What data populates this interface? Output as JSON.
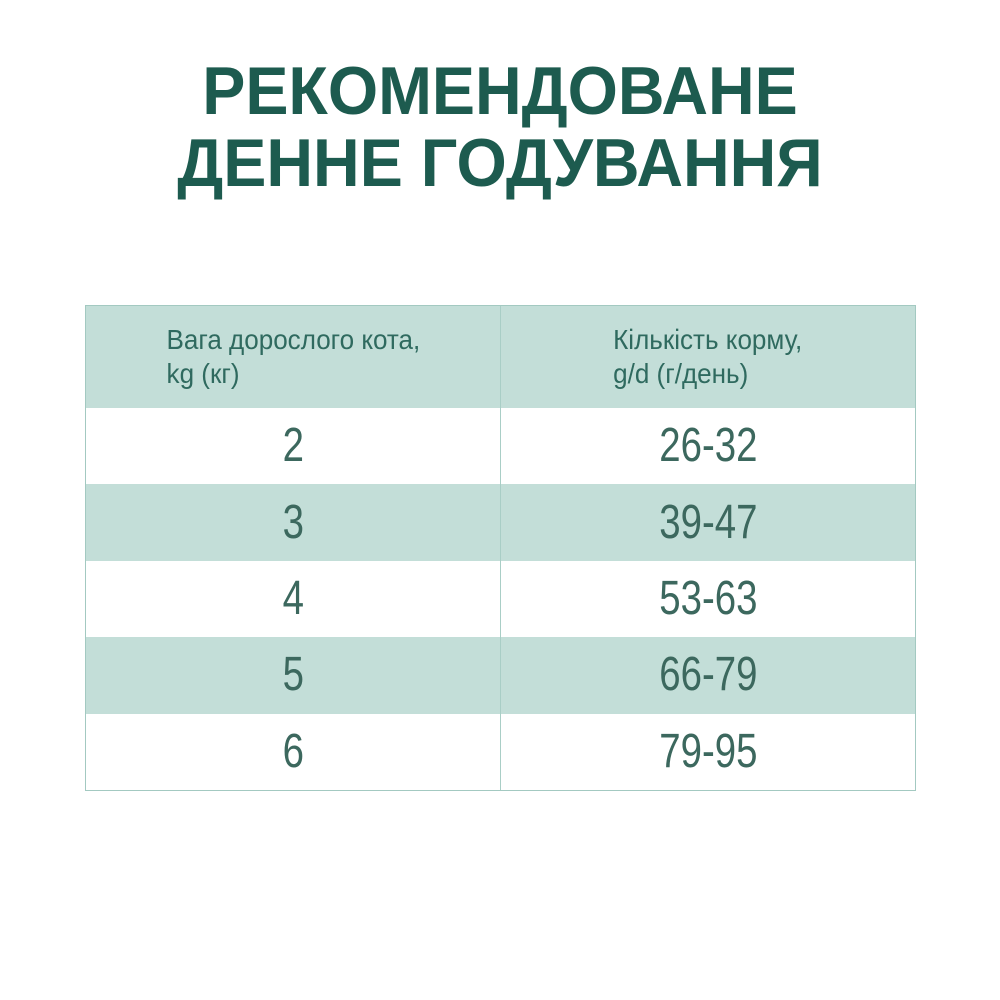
{
  "title": {
    "line1": "РЕКОМЕНДОВАНЕ",
    "line2": "ДЕННЕ ГОДУВАННЯ"
  },
  "table": {
    "header": [
      {
        "line1": "Вага дорослого кота,",
        "line2": "kg (кг)"
      },
      {
        "line1": "Кількість корму,",
        "line2": "g/d (г/день)"
      }
    ],
    "rows": [
      {
        "weight": "2",
        "amount": "26-32"
      },
      {
        "weight": "3",
        "amount": "39-47"
      },
      {
        "weight": "4",
        "amount": "53-63"
      },
      {
        "weight": "5",
        "amount": "66-79"
      },
      {
        "weight": "6",
        "amount": "79-95"
      }
    ]
  },
  "colors": {
    "title_text": "#1d5b4f",
    "table_text": "#3c685e",
    "header_text": "#2f6a5f",
    "row_alt_bg": "#c3ded8",
    "row_bg": "#ffffff",
    "border": "#a3c9c1"
  },
  "chart_data": {
    "type": "table",
    "title": "РЕКОМЕНДОВАНЕ ДЕННЕ ГОДУВАННЯ",
    "columns": [
      "Вага дорослого кота, kg (кг)",
      "Кількість корму, g/d (г/день)"
    ],
    "rows": [
      [
        2,
        "26-32"
      ],
      [
        3,
        "39-47"
      ],
      [
        4,
        "53-63"
      ],
      [
        5,
        "66-79"
      ],
      [
        6,
        "79-95"
      ]
    ]
  }
}
